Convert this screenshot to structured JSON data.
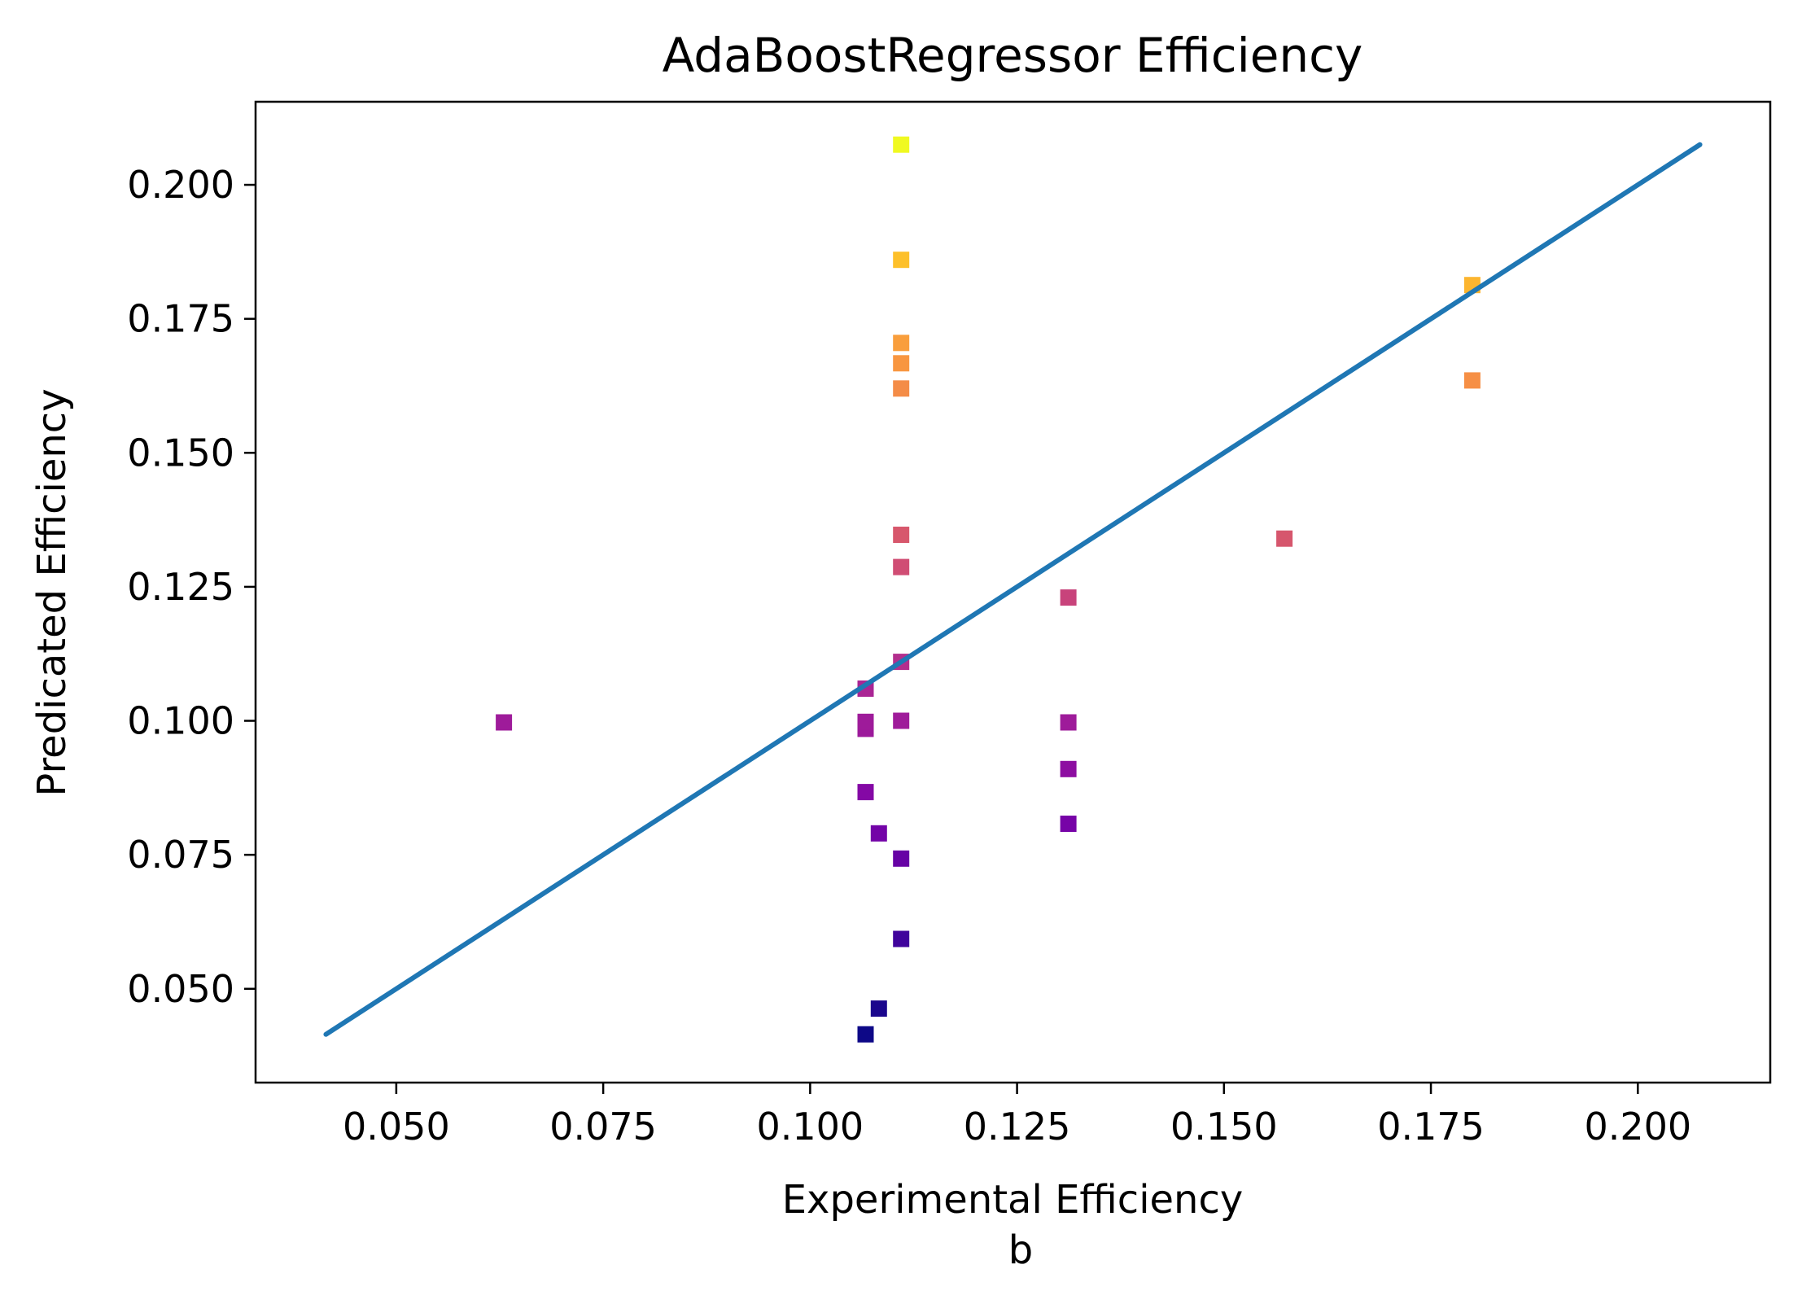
{
  "chart_data": {
    "type": "scatter",
    "title": "AdaBoostRegressor Efficiency",
    "xlabel": "Experimental Efficiency",
    "sublabel": "b",
    "ylabel": "Predicated Efficiency",
    "xlim": [
      0.033,
      0.216
    ],
    "ylim": [
      0.0325,
      0.2155
    ],
    "xticks": [
      0.05,
      0.075,
      0.1,
      0.125,
      0.15,
      0.175,
      0.2
    ],
    "xtick_labels": [
      "0.050",
      "0.075",
      "0.100",
      "0.125",
      "0.150",
      "0.175",
      "0.200"
    ],
    "yticks": [
      0.05,
      0.075,
      0.1,
      0.125,
      0.15,
      0.175,
      0.2
    ],
    "ytick_labels": [
      "0.050",
      "0.075",
      "0.100",
      "0.125",
      "0.150",
      "0.175",
      "0.200"
    ],
    "grid": false,
    "legend": "none",
    "colormap": "plasma",
    "line_color": "#1f77b4",
    "reference_line": {
      "x": [
        0.0415,
        0.2075
      ],
      "y": [
        0.0415,
        0.2075
      ]
    },
    "points": [
      {
        "x": 0.063,
        "y": 0.0997
      },
      {
        "x": 0.1067,
        "y": 0.0415
      },
      {
        "x": 0.1083,
        "y": 0.0463
      },
      {
        "x": 0.1067,
        "y": 0.0867
      },
      {
        "x": 0.1083,
        "y": 0.079
      },
      {
        "x": 0.1067,
        "y": 0.0985
      },
      {
        "x": 0.1067,
        "y": 0.0998
      },
      {
        "x": 0.1067,
        "y": 0.106
      },
      {
        "x": 0.111,
        "y": 0.0593
      },
      {
        "x": 0.111,
        "y": 0.0743
      },
      {
        "x": 0.111,
        "y": 0.1
      },
      {
        "x": 0.111,
        "y": 0.111
      },
      {
        "x": 0.111,
        "y": 0.1287
      },
      {
        "x": 0.111,
        "y": 0.1347
      },
      {
        "x": 0.111,
        "y": 0.162
      },
      {
        "x": 0.111,
        "y": 0.1667
      },
      {
        "x": 0.111,
        "y": 0.1705
      },
      {
        "x": 0.111,
        "y": 0.186
      },
      {
        "x": 0.111,
        "y": 0.2075
      },
      {
        "x": 0.1312,
        "y": 0.0808
      },
      {
        "x": 0.1312,
        "y": 0.091
      },
      {
        "x": 0.1312,
        "y": 0.0997
      },
      {
        "x": 0.1312,
        "y": 0.123
      },
      {
        "x": 0.1573,
        "y": 0.134
      },
      {
        "x": 0.18,
        "y": 0.1635
      },
      {
        "x": 0.18,
        "y": 0.1813
      }
    ]
  }
}
